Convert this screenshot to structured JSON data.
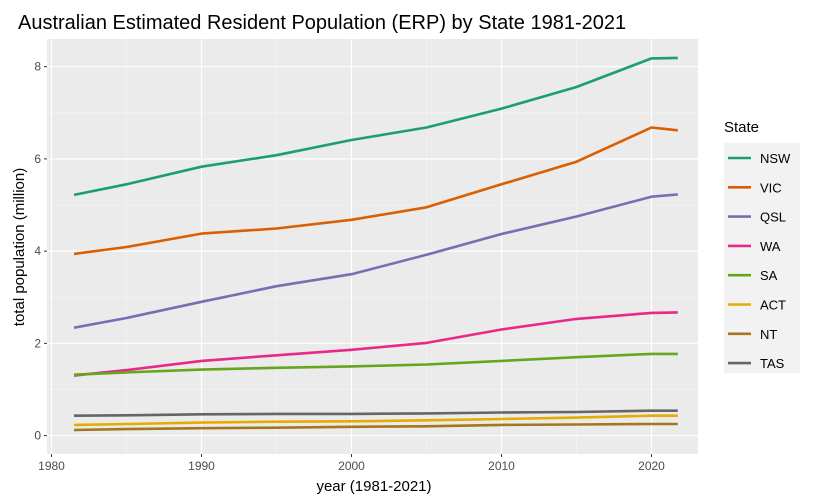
{
  "chart_data": {
    "type": "line",
    "title": "Australian Estimated Resident Population (ERP) by State 1981-2021",
    "xlabel": "year (1981-2021)",
    "ylabel": "total population (million)",
    "xlim": [
      1979.7,
      2023.1
    ],
    "ylim": [
      -0.4,
      8.6
    ],
    "x_ticks": [
      1980,
      1990,
      2000,
      2010,
      2020
    ],
    "y_ticks": [
      0,
      2,
      4,
      6,
      8
    ],
    "grid": true,
    "legend_position": "right",
    "legend_title": "State",
    "x": [
      1981.5,
      1985,
      1990,
      1995,
      2000,
      2005,
      2010,
      2015,
      2020,
      2021.75
    ],
    "series": [
      {
        "name": "NSW",
        "color": "#1b9e77",
        "values": [
          5.22,
          5.45,
          5.83,
          6.08,
          6.41,
          6.68,
          7.09,
          7.56,
          8.18,
          8.19
        ]
      },
      {
        "name": "VIC",
        "color": "#d95f02",
        "values": [
          3.94,
          4.09,
          4.38,
          4.49,
          4.68,
          4.95,
          5.45,
          5.94,
          6.68,
          6.62
        ]
      },
      {
        "name": "QSL",
        "color": "#7570b3",
        "values": [
          2.34,
          2.55,
          2.9,
          3.24,
          3.5,
          3.92,
          4.37,
          4.75,
          5.18,
          5.23
        ]
      },
      {
        "name": "WA",
        "color": "#e7298a",
        "values": [
          1.3,
          1.42,
          1.62,
          1.74,
          1.86,
          2.01,
          2.3,
          2.53,
          2.66,
          2.67
        ]
      },
      {
        "name": "SA",
        "color": "#66a61e",
        "values": [
          1.32,
          1.37,
          1.43,
          1.47,
          1.5,
          1.54,
          1.62,
          1.7,
          1.77,
          1.77
        ]
      },
      {
        "name": "ACT",
        "color": "#e6ab02",
        "values": [
          0.23,
          0.25,
          0.28,
          0.3,
          0.31,
          0.33,
          0.36,
          0.39,
          0.43,
          0.43
        ]
      },
      {
        "name": "NT",
        "color": "#a6761d",
        "values": [
          0.12,
          0.14,
          0.16,
          0.17,
          0.19,
          0.2,
          0.23,
          0.24,
          0.25,
          0.25
        ]
      },
      {
        "name": "TAS",
        "color": "#666666",
        "values": [
          0.43,
          0.44,
          0.46,
          0.47,
          0.47,
          0.48,
          0.5,
          0.51,
          0.54,
          0.54
        ]
      }
    ]
  }
}
